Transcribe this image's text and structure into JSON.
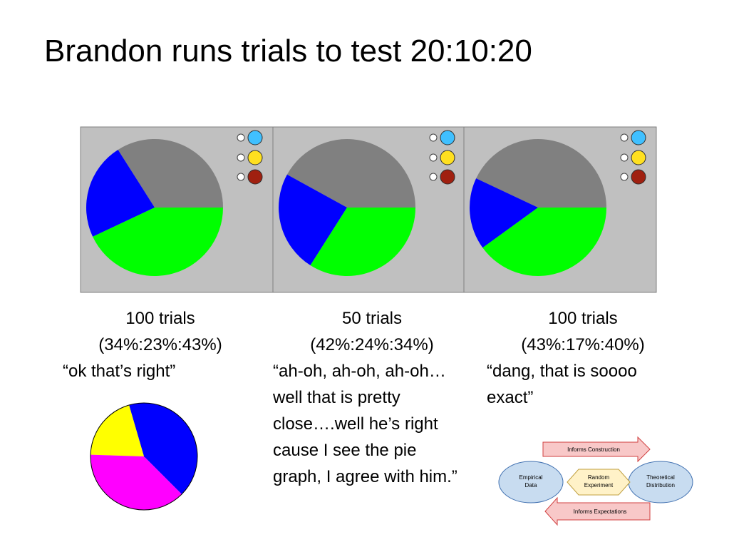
{
  "title": "Brandon runs trials to test 20:10:20",
  "panels": [
    {
      "trials": "100 trials",
      "ratio": "(34%:23%:43%)",
      "quote": "“ok that’s right”",
      "slices": [
        {
          "color": "#808080",
          "value": 34
        },
        {
          "color": "#0000ff",
          "value": 23
        },
        {
          "color": "#00ff00",
          "value": 43
        }
      ]
    },
    {
      "trials": "50 trials",
      "ratio": "(42%:24%:34%)",
      "quote": "“ah-oh, ah-oh, ah-oh…well that is pretty close….well he’s right cause I see the pie graph, I agree with him.”",
      "slices": [
        {
          "color": "#808080",
          "value": 42
        },
        {
          "color": "#0000ff",
          "value": 24
        },
        {
          "color": "#00ff00",
          "value": 34
        }
      ]
    },
    {
      "trials": "100 trials",
      "ratio": "(43%:17%:40%)",
      "quote": "“dang, that is soooo exact”",
      "slices": [
        {
          "color": "#808080",
          "value": 43
        },
        {
          "color": "#0000ff",
          "value": 17
        },
        {
          "color": "#00ff00",
          "value": 40
        }
      ]
    }
  ],
  "spinner": {
    "slices": [
      {
        "color": "#0000ff",
        "value": 42
      },
      {
        "color": "#ffff00",
        "value": 20
      },
      {
        "color": "#ff00ff",
        "value": 38
      }
    ]
  },
  "diagram": {
    "top_arrow": "Informs Construction",
    "left": [
      "Empirical",
      "Data"
    ],
    "center": [
      "Random",
      "Experiment"
    ],
    "right": [
      "Theoretical",
      "Distribution"
    ],
    "bottom_arrow": "Informs Expectations"
  }
}
